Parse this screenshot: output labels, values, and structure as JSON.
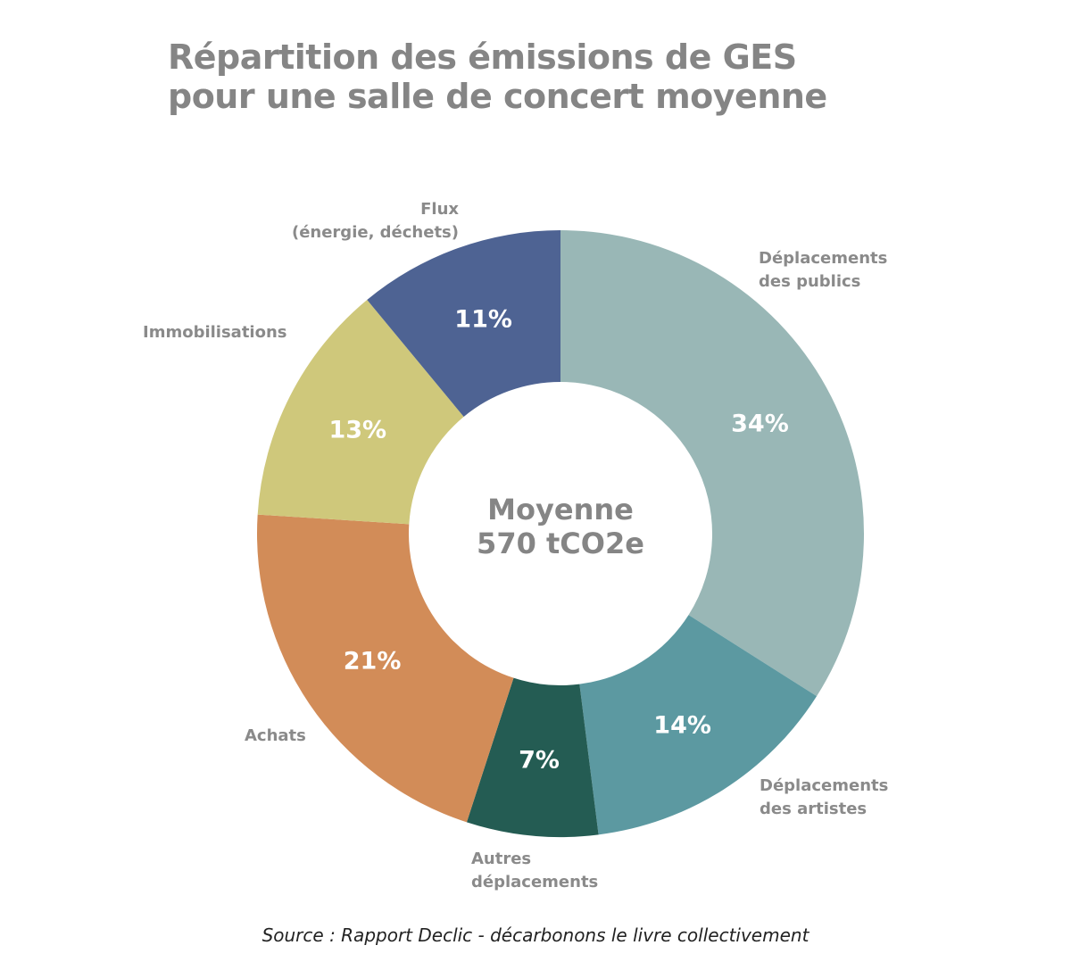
{
  "chart_data": {
    "type": "pie",
    "variant": "donut",
    "title": "Répartition des émissions de GES pour une salle de concert moyenne",
    "title_lines": [
      "Répartition des émissions de GES",
      "pour une salle de concert moyenne"
    ],
    "categories": [
      "Déplacements des publics",
      "Déplacements des artistes",
      "Autres déplacements",
      "Achats",
      "Immobilisations",
      "Flux (énergie, déchets)"
    ],
    "values": [
      34,
      14,
      7,
      21,
      13,
      11
    ],
    "unit": "%",
    "colors": [
      "#99b7b6",
      "#5c99a1",
      "#245c53",
      "#d28c58",
      "#cfc87b",
      "#4e6393"
    ],
    "center_label": [
      "Moyenne",
      "570 tCO2e"
    ],
    "start_angle": "12 o'clock",
    "direction": "clockwise",
    "legend": "none (direct labels)",
    "source": "Source : Rapport Declic - décarbonons le livre collectivement"
  },
  "labels": {
    "publics": [
      "Déplacements",
      "des publics"
    ],
    "artistes": [
      "Déplacements",
      "des artistes"
    ],
    "autres": [
      "Autres",
      "déplacements"
    ],
    "achats": [
      "Achats"
    ],
    "immo": [
      "Immobilisations"
    ],
    "flux": [
      "Flux",
      "(énergie, déchets)"
    ]
  },
  "pct_labels": [
    "34%",
    "14%",
    "7%",
    "21%",
    "13%",
    "11%"
  ],
  "center": {
    "line1": "Moyenne",
    "line2": "570 tCO2e"
  },
  "source": "Source : Rapport Declic - décarbonons le livre collectivement"
}
